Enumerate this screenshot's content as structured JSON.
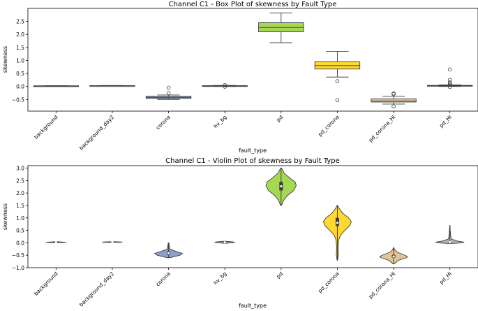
{
  "chart_data": [
    {
      "type": "box",
      "title": "Channel C1 - Box Plot of skewness by Fault Type",
      "xlabel": "fault_type",
      "ylabel": "skewness",
      "ylim": [
        -0.95,
        3.0
      ],
      "yticks": [
        -0.5,
        0.0,
        0.5,
        1.0,
        1.5,
        2.0,
        2.5
      ],
      "yticklabels": [
        "−0.5",
        "0.0",
        "0.5",
        "1.0",
        "1.5",
        "2.0",
        "2.5"
      ],
      "grid": false,
      "categories": [
        "background",
        "background_day2",
        "corona",
        "hv_bg",
        "pd",
        "pd_corona",
        "pd_corona_HI",
        "pd_HI"
      ],
      "colors": [
        "#8dd3c7",
        "#ffffb3",
        "#8da0cb",
        "#b3b3b3",
        "#a6d854",
        "#ffd92f",
        "#e5c494",
        "#b3b3b3"
      ],
      "boxes": [
        {
          "whislo": 0.01,
          "q1": 0.015,
          "med": 0.02,
          "q3": 0.025,
          "whishi": 0.03,
          "fliers": []
        },
        {
          "whislo": 0.015,
          "q1": 0.02,
          "med": 0.025,
          "q3": 0.03,
          "whishi": 0.035,
          "fliers": []
        },
        {
          "whislo": -0.5,
          "q1": -0.46,
          "med": -0.42,
          "q3": -0.38,
          "whishi": -0.33,
          "fliers": [
            -0.05,
            -0.26
          ]
        },
        {
          "whislo": 0.0,
          "q1": 0.01,
          "med": 0.02,
          "q3": 0.03,
          "whishi": 0.04,
          "fliers": [
            0.05,
            -0.01
          ]
        },
        {
          "whislo": 1.68,
          "q1": 2.1,
          "med": 2.27,
          "q3": 2.45,
          "whishi": 2.82,
          "fliers": []
        },
        {
          "whislo": 0.36,
          "q1": 0.67,
          "med": 0.8,
          "q3": 0.95,
          "whishi": 1.35,
          "fliers": [
            0.2,
            -0.53
          ]
        },
        {
          "whislo": -0.68,
          "q1": -0.6,
          "med": -0.56,
          "q3": -0.48,
          "whishi": -0.38,
          "fliers": [
            -0.27,
            -0.3,
            -0.77
          ]
        },
        {
          "whislo": 0.0,
          "q1": 0.01,
          "med": 0.02,
          "q3": 0.04,
          "whishi": 0.06,
          "fliers": [
            0.65,
            0.25,
            0.15,
            0.1,
            0.06,
            -0.02
          ]
        }
      ]
    },
    {
      "type": "violin",
      "title": "Channel C1 - Violin Plot of skewness by Fault Type",
      "xlabel": "fault_type",
      "ylabel": "skewness",
      "ylim": [
        -1.0,
        3.1
      ],
      "yticks": [
        -1.0,
        -0.5,
        0.0,
        0.5,
        1.0,
        1.5,
        2.0,
        2.5,
        3.0
      ],
      "yticklabels": [
        "−1.0",
        "−0.5",
        "0.0",
        "0.5",
        "1.0",
        "1.5",
        "2.0",
        "2.5",
        "3.0"
      ],
      "grid": false,
      "categories": [
        "background",
        "background_day2",
        "corona",
        "hv_bg",
        "pd",
        "pd_corona",
        "pd_corona_HI",
        "pd_HI"
      ],
      "colors": [
        "#8dd3c7",
        "#ffffb3",
        "#8da0cb",
        "#b3b3b3",
        "#a6d854",
        "#ffd92f",
        "#e5c494",
        "#b3b3b3"
      ],
      "violins": [
        {
          "min": 0.0,
          "q1": 0.015,
          "med": 0.02,
          "q3": 0.025,
          "max": 0.045,
          "profile": [
            [
              0.0,
              0.05
            ],
            [
              0.01,
              0.25
            ],
            [
              0.02,
              0.4
            ],
            [
              0.03,
              0.25
            ],
            [
              0.045,
              0.05
            ]
          ]
        },
        {
          "min": 0.01,
          "q1": 0.02,
          "med": 0.025,
          "q3": 0.03,
          "max": 0.045,
          "profile": [
            [
              0.01,
              0.05
            ],
            [
              0.02,
              0.35
            ],
            [
              0.03,
              0.4
            ],
            [
              0.04,
              0.2
            ],
            [
              0.045,
              0.05
            ]
          ]
        },
        {
          "min": -0.6,
          "q1": -0.48,
          "med": -0.42,
          "q3": -0.35,
          "max": 0.0,
          "profile": [
            [
              -0.6,
              0.05
            ],
            [
              -0.5,
              0.45
            ],
            [
              -0.43,
              0.55
            ],
            [
              -0.35,
              0.3
            ],
            [
              -0.25,
              0.05
            ],
            [
              -0.1,
              0.03
            ],
            [
              0.0,
              0.01
            ]
          ]
        },
        {
          "min": -0.02,
          "q1": 0.01,
          "med": 0.02,
          "q3": 0.03,
          "max": 0.06,
          "profile": [
            [
              -0.02,
              0.05
            ],
            [
              0.0,
              0.3
            ],
            [
              0.02,
              0.4
            ],
            [
              0.04,
              0.3
            ],
            [
              0.06,
              0.05
            ]
          ]
        },
        {
          "min": 1.5,
          "q1": 2.1,
          "med": 2.27,
          "q3": 2.45,
          "max": 3.0,
          "profile": [
            [
              1.5,
              0.02
            ],
            [
              1.7,
              0.1
            ],
            [
              1.9,
              0.25
            ],
            [
              2.1,
              0.5
            ],
            [
              2.3,
              0.6
            ],
            [
              2.45,
              0.55
            ],
            [
              2.6,
              0.35
            ],
            [
              2.8,
              0.12
            ],
            [
              3.0,
              0.02
            ]
          ]
        },
        {
          "min": -0.7,
          "q1": 0.67,
          "med": 0.8,
          "q3": 1.0,
          "max": 1.5,
          "profile": [
            [
              -0.7,
              0.01
            ],
            [
              -0.5,
              0.04
            ],
            [
              -0.2,
              0.03
            ],
            [
              0.1,
              0.05
            ],
            [
              0.3,
              0.12
            ],
            [
              0.5,
              0.3
            ],
            [
              0.7,
              0.5
            ],
            [
              0.85,
              0.55
            ],
            [
              1.0,
              0.45
            ],
            [
              1.2,
              0.2
            ],
            [
              1.4,
              0.06
            ],
            [
              1.5,
              0.01
            ]
          ]
        },
        {
          "min": -0.85,
          "q1": -0.6,
          "med": -0.55,
          "q3": -0.48,
          "max": -0.2,
          "profile": [
            [
              -0.85,
              0.02
            ],
            [
              -0.7,
              0.2
            ],
            [
              -0.6,
              0.5
            ],
            [
              -0.55,
              0.55
            ],
            [
              -0.48,
              0.4
            ],
            [
              -0.38,
              0.15
            ],
            [
              -0.28,
              0.04
            ],
            [
              -0.2,
              0.01
            ]
          ]
        },
        {
          "min": -0.03,
          "q1": 0.01,
          "med": 0.02,
          "q3": 0.04,
          "max": 0.7,
          "profile": [
            [
              -0.03,
              0.05
            ],
            [
              0.0,
              0.5
            ],
            [
              0.03,
              0.55
            ],
            [
              0.07,
              0.3
            ],
            [
              0.15,
              0.06
            ],
            [
              0.3,
              0.03
            ],
            [
              0.5,
              0.015
            ],
            [
              0.7,
              0.005
            ]
          ]
        }
      ]
    }
  ]
}
